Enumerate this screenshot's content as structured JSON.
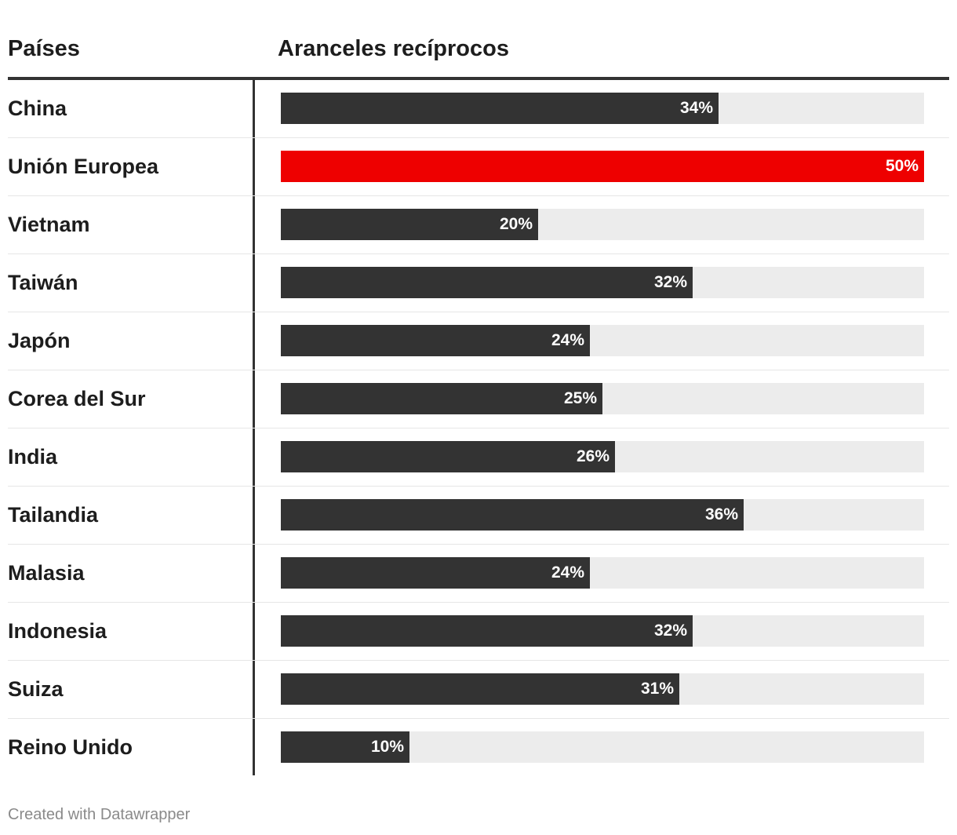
{
  "header": {
    "country_column": "Países",
    "value_column": "Aranceles recíprocos"
  },
  "colors": {
    "bar": "#333333",
    "highlight": "#ee0000",
    "track": "#ececec"
  },
  "chart_data": {
    "type": "bar",
    "orientation": "horizontal",
    "title": "",
    "xlabel": "",
    "ylabel": "",
    "xlim": [
      0,
      50
    ],
    "highlight_category": "Unión Europea",
    "categories": [
      "China",
      "Unión Europea",
      "Vietnam",
      "Taiwán",
      "Japón",
      "Corea del Sur",
      "India",
      "Tailandia",
      "Malasia",
      "Indonesia",
      "Suiza",
      "Reino Unido"
    ],
    "values": [
      34,
      50,
      20,
      32,
      24,
      25,
      26,
      36,
      24,
      32,
      31,
      10
    ],
    "labels": [
      "34%",
      "50%",
      "20%",
      "32%",
      "24%",
      "25%",
      "26%",
      "36%",
      "24%",
      "32%",
      "31%",
      "10%"
    ]
  },
  "footer": {
    "credit": "Created with Datawrapper"
  }
}
